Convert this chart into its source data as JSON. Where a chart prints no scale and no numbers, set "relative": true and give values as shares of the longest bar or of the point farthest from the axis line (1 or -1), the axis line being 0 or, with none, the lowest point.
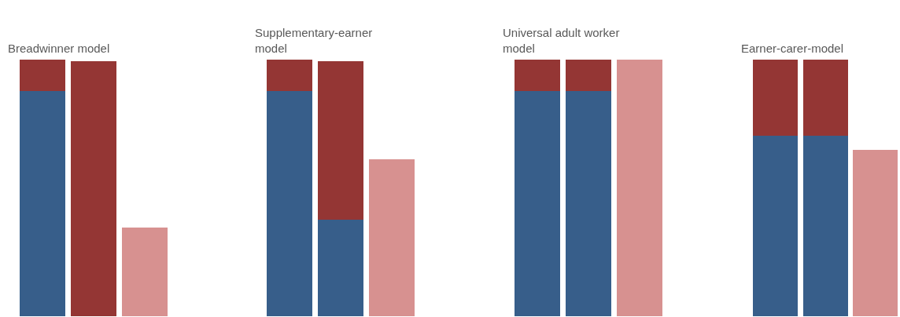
{
  "chart_data": [
    {
      "type": "bar",
      "title": "Breadwinner model",
      "stacked": true,
      "relative": true,
      "categories": [
        null,
        null,
        null
      ],
      "series": [
        {
          "color": "#375e8a",
          "values": [
            0.878,
            null,
            null
          ]
        },
        {
          "color": "#943634",
          "values": [
            0.122,
            0.994,
            null
          ]
        },
        {
          "color": "#d79190",
          "values": [
            null,
            null,
            0.345
          ]
        }
      ]
    },
    {
      "type": "bar",
      "title": "Supplementary-earner model",
      "stacked": true,
      "relative": true,
      "categories": [
        null,
        null,
        null
      ],
      "series": [
        {
          "color": "#375e8a",
          "values": [
            0.878,
            0.375,
            null
          ]
        },
        {
          "color": "#943634",
          "values": [
            0.122,
            0.619,
            null
          ]
        },
        {
          "color": "#d79190",
          "values": [
            null,
            null,
            0.613
          ]
        }
      ]
    },
    {
      "type": "bar",
      "title": "Universal adult worker model",
      "stacked": true,
      "relative": true,
      "categories": [
        null,
        null,
        null
      ],
      "series": [
        {
          "color": "#375e8a",
          "values": [
            0.878,
            0.878,
            null
          ]
        },
        {
          "color": "#943634",
          "values": [
            0.122,
            0.122,
            null
          ]
        },
        {
          "color": "#d79190",
          "values": [
            null,
            null,
            1.0
          ]
        }
      ]
    },
    {
      "type": "bar",
      "title": "Earner-carer-model",
      "stacked": true,
      "relative": true,
      "categories": [
        null,
        null,
        null
      ],
      "series": [
        {
          "color": "#375e8a",
          "values": [
            0.704,
            0.704,
            null
          ]
        },
        {
          "color": "#943634",
          "values": [
            0.296,
            0.296,
            null
          ]
        },
        {
          "color": "#d79190",
          "values": [
            null,
            null,
            0.649
          ]
        }
      ]
    }
  ]
}
